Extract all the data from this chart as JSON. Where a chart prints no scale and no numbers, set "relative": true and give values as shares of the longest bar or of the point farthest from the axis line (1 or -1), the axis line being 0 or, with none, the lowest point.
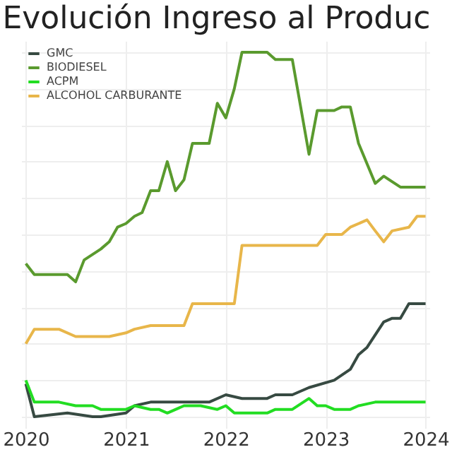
{
  "chart_data": {
    "type": "line",
    "title": "Evolución Ingreso al Produc",
    "relative": true,
    "grid": true,
    "legend": "top left",
    "xlim": [
      "2019-12-15",
      "2024-01-15"
    ],
    "xticks": [
      {
        "value": "2020-01",
        "label": "2020"
      },
      {
        "value": "2021-01",
        "label": "2021"
      },
      {
        "value": "2022-01",
        "label": "2022"
      },
      {
        "value": "2023-01",
        "label": "2023"
      },
      {
        "value": "2024-01",
        "label": "2024"
      }
    ],
    "series": [
      {
        "name": "GMC",
        "color": "#374a42",
        "x": [
          "2020-01",
          "2020-02",
          "2020-06",
          "2020-09",
          "2020-10",
          "2021-01",
          "2021-02",
          "2021-04",
          "2021-06",
          "2021-07",
          "2021-09",
          "2021-11",
          "2022-01",
          "2022-03",
          "2022-06",
          "2022-07",
          "2022-09",
          "2022-11",
          "2023-02",
          "2023-04",
          "2023-05",
          "2023-06",
          "2023-08",
          "2023-09",
          "2023-10",
          "2023-11",
          "2023-12",
          "2024-01"
        ],
        "values": [
          0.09,
          0.0,
          0.01,
          0.0,
          0.0,
          0.01,
          0.03,
          0.04,
          0.04,
          0.04,
          0.04,
          0.04,
          0.06,
          0.05,
          0.05,
          0.06,
          0.06,
          0.08,
          0.1,
          0.13,
          0.17,
          0.19,
          0.26,
          0.27,
          0.27,
          0.31,
          0.31,
          0.31
        ]
      },
      {
        "name": "BIODIESEL",
        "color": "#5a9a2e",
        "x": [
          "2020-01",
          "2020-02",
          "2020-06",
          "2020-07",
          "2020-08",
          "2020-10",
          "2020-11",
          "2020-12",
          "2021-01",
          "2021-02",
          "2021-03",
          "2021-04",
          "2021-05",
          "2021-06",
          "2021-07",
          "2021-08",
          "2021-09",
          "2021-11",
          "2021-12",
          "2022-01",
          "2022-02",
          "2022-03",
          "2022-06",
          "2022-07",
          "2022-09",
          "2022-11",
          "2022-12",
          "2023-02",
          "2023-03",
          "2023-04",
          "2023-05",
          "2023-07",
          "2023-08",
          "2023-10",
          "2023-11",
          "2024-01"
        ],
        "values": [
          0.42,
          0.39,
          0.39,
          0.37,
          0.43,
          0.46,
          0.48,
          0.52,
          0.53,
          0.55,
          0.56,
          0.62,
          0.62,
          0.7,
          0.62,
          0.65,
          0.75,
          0.75,
          0.86,
          0.82,
          0.9,
          1.0,
          1.0,
          0.98,
          0.98,
          0.72,
          0.84,
          0.84,
          0.85,
          0.85,
          0.75,
          0.64,
          0.66,
          0.63,
          0.63,
          0.63
        ]
      },
      {
        "name": "ACPM",
        "color": "#22dd22",
        "x": [
          "2020-01",
          "2020-02",
          "2020-05",
          "2020-07",
          "2020-08",
          "2020-09",
          "2020-10",
          "2020-12",
          "2021-01",
          "2021-02",
          "2021-04",
          "2021-05",
          "2021-06",
          "2021-08",
          "2021-10",
          "2021-12",
          "2022-01",
          "2022-02",
          "2022-06",
          "2022-07",
          "2022-09",
          "2022-11",
          "2022-12",
          "2023-01",
          "2023-02",
          "2023-04",
          "2023-05",
          "2023-07",
          "2023-08",
          "2023-10",
          "2024-01"
        ],
        "values": [
          0.1,
          0.04,
          0.04,
          0.03,
          0.03,
          0.03,
          0.02,
          0.02,
          0.02,
          0.03,
          0.02,
          0.02,
          0.01,
          0.03,
          0.03,
          0.02,
          0.03,
          0.01,
          0.01,
          0.02,
          0.02,
          0.05,
          0.03,
          0.03,
          0.02,
          0.02,
          0.03,
          0.04,
          0.04,
          0.04,
          0.04
        ]
      },
      {
        "name": "ALCOHOL CARBURANTE",
        "color": "#e8b64a",
        "x": [
          "2020-01",
          "2020-02",
          "2020-05",
          "2020-07",
          "2020-10",
          "2020-11",
          "2021-01",
          "2021-02",
          "2021-04",
          "2021-08",
          "2021-09",
          "2022-02",
          "2022-03",
          "2022-12",
          "2023-01",
          "2023-03",
          "2023-04",
          "2023-06",
          "2023-07",
          "2023-08",
          "2023-09",
          "2023-11",
          "2023-12",
          "2024-01"
        ],
        "values": [
          0.2,
          0.24,
          0.24,
          0.22,
          0.22,
          0.22,
          0.23,
          0.24,
          0.25,
          0.25,
          0.31,
          0.31,
          0.47,
          0.47,
          0.5,
          0.5,
          0.52,
          0.54,
          0.51,
          0.48,
          0.51,
          0.52,
          0.55,
          0.55
        ]
      }
    ]
  }
}
